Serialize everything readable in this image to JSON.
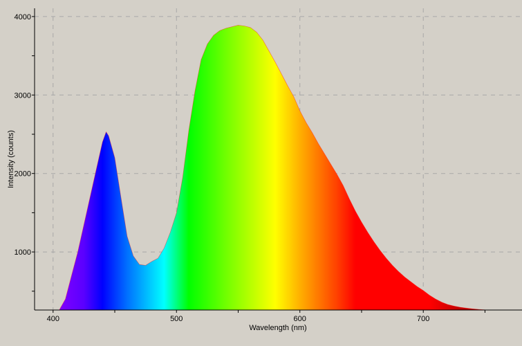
{
  "chart_data": {
    "type": "area",
    "xlabel": "Wavelength (nm)",
    "ylabel": "Intensity (counts)",
    "xlim": [
      385,
      780
    ],
    "ylim": [
      260,
      4105
    ],
    "xticks": [
      400,
      500,
      600,
      700
    ],
    "yticks": [
      1000,
      2000,
      3000,
      4000
    ],
    "grid": true,
    "fill": "spectral color gradient by wavelength",
    "background": "#d4d0c8",
    "x": [
      405,
      410,
      415,
      420,
      425,
      430,
      435,
      440,
      443,
      445,
      450,
      455,
      460,
      465,
      470,
      475,
      480,
      485,
      490,
      495,
      500,
      505,
      510,
      515,
      520,
      525,
      530,
      535,
      540,
      545,
      550,
      555,
      560,
      565,
      570,
      575,
      580,
      585,
      590,
      595,
      600,
      605,
      610,
      615,
      620,
      625,
      630,
      635,
      640,
      645,
      650,
      655,
      660,
      665,
      670,
      675,
      680,
      685,
      690,
      695,
      700,
      705,
      710,
      715,
      720,
      725,
      730,
      735,
      740,
      745,
      750,
      755
    ],
    "y": [
      260,
      400,
      700,
      1000,
      1350,
      1700,
      2050,
      2400,
      2530,
      2480,
      2200,
      1700,
      1200,
      950,
      840,
      830,
      880,
      920,
      1050,
      1250,
      1500,
      1950,
      2550,
      3050,
      3450,
      3650,
      3760,
      3820,
      3850,
      3870,
      3890,
      3880,
      3860,
      3800,
      3700,
      3560,
      3420,
      3270,
      3120,
      2980,
      2800,
      2650,
      2520,
      2380,
      2250,
      2120,
      1990,
      1850,
      1680,
      1520,
      1380,
      1250,
      1130,
      1020,
      920,
      830,
      750,
      680,
      620,
      560,
      510,
      450,
      400,
      360,
      330,
      310,
      295,
      285,
      275,
      268,
      263,
      260
    ]
  }
}
